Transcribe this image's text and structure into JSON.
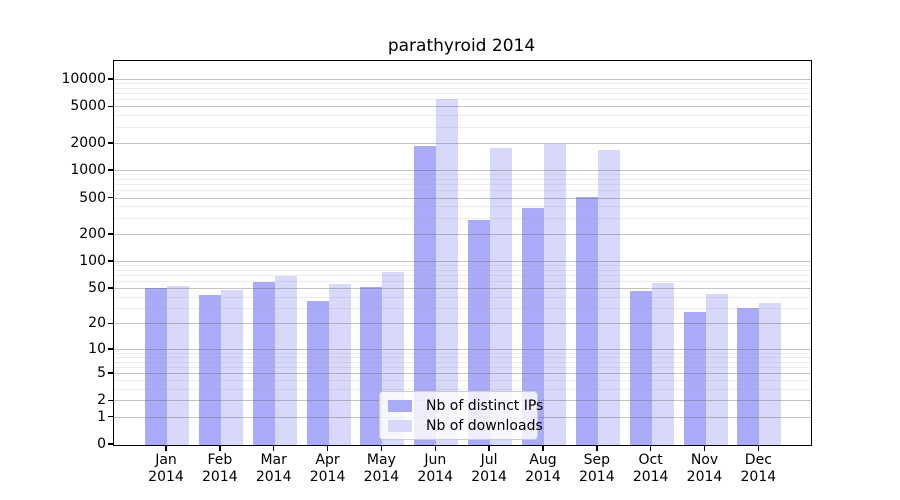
{
  "title": "parathyroid 2014",
  "legend": {
    "items": [
      {
        "label": "Nb of distinct IPs",
        "color": "#aaaafa"
      },
      {
        "label": "Nb of downloads",
        "color": "#d8d8fa"
      }
    ]
  },
  "chart_data": {
    "type": "bar",
    "title": "parathyroid 2014",
    "xlabel": "",
    "ylabel": "",
    "yscale": "log(1+y)",
    "grid": true,
    "legend_position": "lower center",
    "categories": [
      "Jan",
      "Feb",
      "Mar",
      "Apr",
      "May",
      "Jun",
      "Jul",
      "Aug",
      "Sep",
      "Oct",
      "Nov",
      "Dec"
    ],
    "category_year": "2014",
    "y_ticks": [
      0,
      1,
      2,
      5,
      10,
      20,
      50,
      100,
      200,
      500,
      1000,
      2000,
      5000,
      10000
    ],
    "y_minor_ticks": [
      3,
      4,
      6,
      7,
      8,
      9,
      30,
      40,
      60,
      70,
      80,
      90,
      300,
      400,
      600,
      700,
      800,
      900,
      3000,
      4000,
      6000,
      7000,
      8000,
      9000
    ],
    "ylim": [
      0,
      16000
    ],
    "series": [
      {
        "name": "Nb of distinct IPs",
        "color": "#aaaafa",
        "values": [
          51,
          43,
          60,
          37,
          53,
          1900,
          290,
          400,
          520,
          48,
          28,
          31
        ]
      },
      {
        "name": "Nb of downloads",
        "color": "#d8d8fa",
        "values": [
          55,
          49,
          70,
          57,
          78,
          6200,
          1800,
          2000,
          1700,
          59,
          44,
          35
        ]
      }
    ]
  }
}
